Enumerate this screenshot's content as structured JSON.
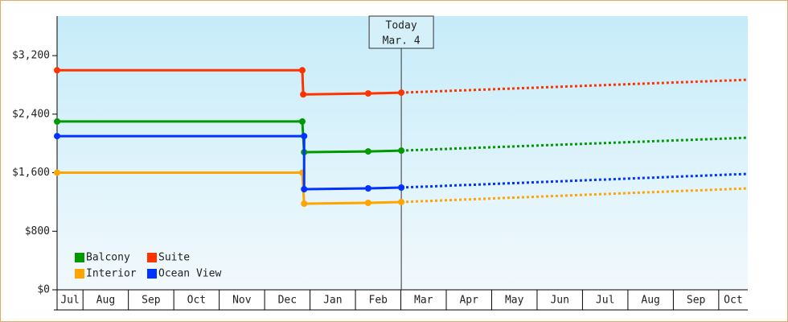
{
  "chart_data": {
    "type": "line",
    "categories": [
      "Jul",
      "Aug",
      "Sep",
      "Oct",
      "Nov",
      "Dec",
      "Jan",
      "Feb",
      "Mar",
      "Apr",
      "May",
      "Jun",
      "Jul",
      "Aug",
      "Sep",
      "Oct"
    ],
    "xlim": [
      0.43,
      15.64
    ],
    "xticks": [
      1,
      2,
      3,
      4,
      5,
      6,
      7,
      8,
      9,
      10,
      11,
      12,
      13,
      14,
      15
    ],
    "ylim": [
      0,
      3740
    ],
    "yticks": [
      {
        "value": 0,
        "label": "$0"
      },
      {
        "value": 800,
        "label": "$800"
      },
      {
        "value": 1600,
        "label": "$1,600"
      },
      {
        "value": 2400,
        "label": "$2,400"
      },
      {
        "value": 3200,
        "label": "$3,200"
      }
    ],
    "today_x": 8.01,
    "annotation": [
      "Today",
      "Mar. 4"
    ],
    "legend": "lower left",
    "series": [
      {
        "name": "Balcony",
        "color": "#009900",
        "x": [
          0.43,
          5.83,
          5.87,
          7.28,
          8.01
        ],
        "values": [
          2300,
          2300,
          1880,
          1891,
          1902
        ],
        "forecast_x": [
          8.01,
          15.64
        ],
        "forecast_values": [
          1902,
          2078
        ]
      },
      {
        "name": "Suite",
        "color": "#ff3300",
        "x": [
          0.43,
          5.83,
          5.85,
          7.28,
          8.01
        ],
        "values": [
          3000,
          3000,
          2670,
          2683,
          2694
        ],
        "forecast_x": [
          8.01,
          15.64
        ],
        "forecast_values": [
          2694,
          2870
        ]
      },
      {
        "name": "Interior",
        "color": "#ffa500",
        "x": [
          0.43,
          5.83,
          5.87,
          7.28,
          8.01
        ],
        "values": [
          1600,
          1600,
          1177,
          1188,
          1199
        ],
        "forecast_x": [
          8.01,
          15.64
        ],
        "forecast_values": [
          1199,
          1386
        ]
      },
      {
        "name": "Ocean View",
        "color": "#0033ff",
        "x": [
          0.43,
          5.87,
          5.87,
          7.28,
          8.01
        ],
        "values": [
          2100,
          2100,
          1375,
          1386,
          1397
        ],
        "forecast_x": [
          8.01,
          15.64
        ],
        "forecast_values": [
          1397,
          1584
        ]
      }
    ]
  }
}
